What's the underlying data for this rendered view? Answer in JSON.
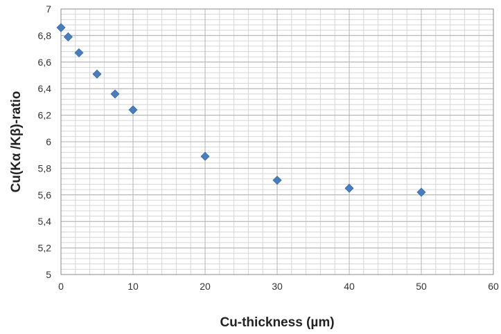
{
  "chart_data": {
    "type": "scatter",
    "title": "",
    "xlabel": "Cu-thickness (µm)",
    "ylabel": "Cu(Kα /Kβ)-ratio",
    "xlim": [
      0,
      60
    ],
    "ylim": [
      5,
      7
    ],
    "x_ticks": [
      0,
      10,
      20,
      30,
      40,
      50,
      60
    ],
    "x_tick_labels": [
      "0",
      "10",
      "20",
      "30",
      "40",
      "50",
      "60"
    ],
    "y_ticks": [
      5,
      5.2,
      5.4,
      5.6,
      5.8,
      6,
      6.2,
      6.4,
      6.6,
      6.8,
      7
    ],
    "y_tick_labels": [
      "5",
      "5,2",
      "5,4",
      "5,6",
      "5,8",
      "6",
      "6,2",
      "6,4",
      "6,6",
      "6,8",
      "7"
    ],
    "grid": true,
    "legend": "none",
    "marker_color": "#4a7ebb",
    "series": [
      {
        "x": [
          0,
          1,
          2.5,
          5,
          7.5,
          10,
          20,
          30,
          40,
          50
        ],
        "y": [
          6.86,
          6.79,
          6.67,
          6.51,
          6.36,
          6.24,
          5.89,
          5.71,
          5.65,
          5.62
        ]
      }
    ]
  }
}
